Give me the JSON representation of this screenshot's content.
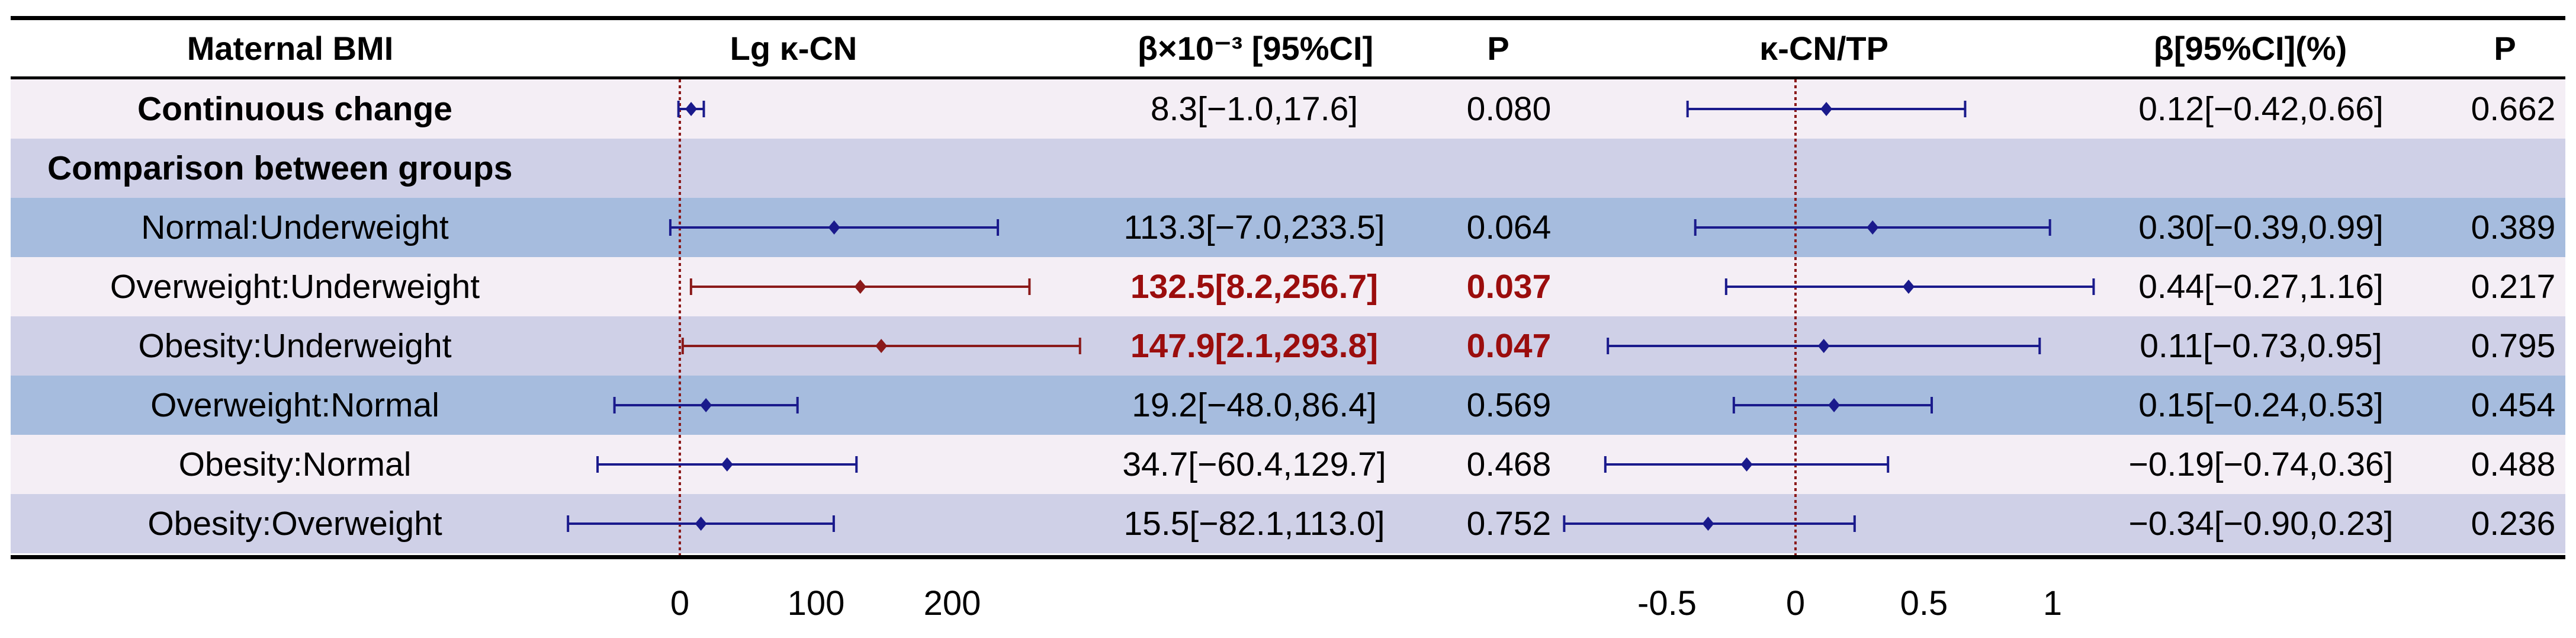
{
  "headers": {
    "group": "Maternal BMI",
    "lgkcn": "Lg κ-CN",
    "beta1": "β×10⁻³ [95%CI]",
    "p1": "P",
    "ratio": "κ-CN/TP",
    "beta2": "β[95%CI](%)",
    "p2": "P"
  },
  "colors": {
    "row_light": "#f4eef5",
    "row_mid": "#cfd0e7",
    "row_dark": "#a6bcde",
    "marker_normal": "#1a1a8c",
    "marker_sig": "#8b1a1a",
    "ref_line": "#8b1a1a",
    "sig_text": "#9b0d0d"
  },
  "rows": [
    {
      "label": "Continuous change",
      "bold": true,
      "band": "light",
      "ci1": "8.3[−1.0,17.6]",
      "p1": "0.080",
      "sig1": false,
      "ci2": "0.12[−0.42,0.66]",
      "p2": "0.662"
    },
    {
      "label": "Comparison between groups",
      "bold": true,
      "section": true,
      "band": "mid",
      "ci1": "",
      "p1": "",
      "sig1": false,
      "ci2": "",
      "p2": ""
    },
    {
      "label": "Normal:Underweight",
      "bold": false,
      "band": "dark",
      "ci1": "113.3[−7.0,233.5]",
      "p1": "0.064",
      "sig1": false,
      "ci2": "0.30[−0.39,0.99]",
      "p2": "0.389"
    },
    {
      "label": "Overweight:Underweight",
      "bold": false,
      "band": "light",
      "ci1": "132.5[8.2,256.7]",
      "p1": "0.037",
      "sig1": true,
      "ci2": "0.44[−0.27,1.16]",
      "p2": "0.217"
    },
    {
      "label": "Obesity:Underweight",
      "bold": false,
      "band": "mid",
      "ci1": "147.9[2.1,293.8]",
      "p1": "0.047",
      "sig1": true,
      "ci2": "0.11[−0.73,0.95]",
      "p2": "0.795"
    },
    {
      "label": "Overweight:Normal",
      "bold": false,
      "band": "dark",
      "ci1": "19.2[−48.0,86.4]",
      "p1": "0.569",
      "sig1": false,
      "ci2": "0.15[−0.24,0.53]",
      "p2": "0.454"
    },
    {
      "label": "Obesity:Normal",
      "bold": false,
      "band": "light",
      "ci1": "34.7[−60.4,129.7]",
      "p1": "0.468",
      "sig1": false,
      "ci2": "−0.19[−0.74,0.36]",
      "p2": "0.488"
    },
    {
      "label": "Obesity:Overweight",
      "bold": false,
      "band": "mid",
      "ci1": "15.5[−82.1,113.0]",
      "p1": "0.752",
      "sig1": false,
      "ci2": "−0.34[−0.90,0.23]",
      "p2": "0.236"
    }
  ],
  "chart_data": [
    {
      "type": "forest",
      "title": "Lg κ-CN",
      "xticks": [
        0,
        100,
        200
      ],
      "xtick_labels": [
        "0",
        "100",
        "200"
      ],
      "reference": 0,
      "categories": [
        "Continuous change",
        "Normal:Underweight",
        "Overweight:Underweight",
        "Obesity:Underweight",
        "Overweight:Normal",
        "Obesity:Normal",
        "Obesity:Overweight"
      ],
      "estimates": [
        8.3,
        113.3,
        132.5,
        147.9,
        19.2,
        34.7,
        15.5
      ],
      "lower": [
        -1.0,
        -7.0,
        8.2,
        2.1,
        -48.0,
        -60.4,
        -82.1
      ],
      "upper": [
        17.6,
        233.5,
        256.7,
        293.8,
        86.4,
        129.7,
        113.0
      ],
      "significant": [
        false,
        false,
        true,
        true,
        false,
        false,
        false
      ]
    },
    {
      "type": "forest",
      "title": "κ-CN/TP",
      "xticks": [
        -0.5,
        0,
        0.5,
        1
      ],
      "xtick_labels": [
        "-0.5",
        "0",
        "0.5",
        "1"
      ],
      "reference": 0,
      "categories": [
        "Continuous change",
        "Normal:Underweight",
        "Overweight:Underweight",
        "Obesity:Underweight",
        "Overweight:Normal",
        "Obesity:Normal",
        "Obesity:Overweight"
      ],
      "estimates": [
        0.12,
        0.3,
        0.44,
        0.11,
        0.15,
        -0.19,
        -0.34
      ],
      "lower": [
        -0.42,
        -0.39,
        -0.27,
        -0.73,
        -0.24,
        -0.74,
        -0.9
      ],
      "upper": [
        0.66,
        0.99,
        1.16,
        0.95,
        0.53,
        0.36,
        0.23
      ],
      "significant": [
        false,
        false,
        false,
        false,
        false,
        false,
        false
      ]
    }
  ]
}
